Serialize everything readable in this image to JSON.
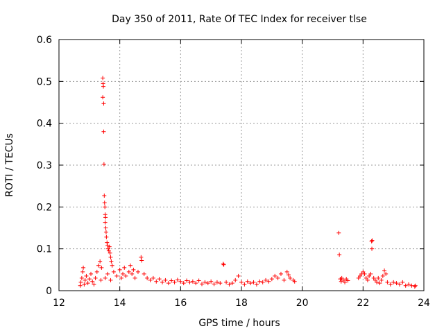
{
  "chart_data": {
    "type": "scatter",
    "title": "Day 350 of 2011, Rate Of TEC Index for receiver tlse",
    "xlabel": "GPS time / hours",
    "ylabel": "ROTI / TECUs",
    "xlim": [
      12,
      24
    ],
    "ylim": [
      0,
      0.6
    ],
    "x_ticks": [
      "12",
      "14",
      "16",
      "18",
      "20",
      "22",
      "24"
    ],
    "y_ticks": [
      "0",
      "0.1",
      "0.2",
      "0.3",
      "0.4",
      "0.5",
      "0.6"
    ],
    "grid": true,
    "marker": "plus",
    "series_color": "#ff0000",
    "series": [
      {
        "points": [
          [
            12.7,
            0.012
          ],
          [
            12.72,
            0.02
          ],
          [
            12.75,
            0.03
          ],
          [
            12.78,
            0.045
          ],
          [
            12.8,
            0.055
          ],
          [
            12.83,
            0.015
          ],
          [
            12.86,
            0.025
          ],
          [
            12.9,
            0.035
          ],
          [
            12.95,
            0.018
          ],
          [
            13.0,
            0.028
          ],
          [
            13.05,
            0.04
          ],
          [
            13.1,
            0.022
          ],
          [
            13.15,
            0.015
          ],
          [
            13.2,
            0.03
          ],
          [
            13.25,
            0.045
          ],
          [
            13.3,
            0.06
          ],
          [
            13.35,
            0.07
          ],
          [
            13.38,
            0.025
          ],
          [
            13.4,
            0.055
          ],
          [
            13.44,
            0.508
          ],
          [
            13.45,
            0.495
          ],
          [
            13.46,
            0.488
          ],
          [
            13.44,
            0.462
          ],
          [
            13.47,
            0.447
          ],
          [
            13.47,
            0.38
          ],
          [
            13.48,
            0.302
          ],
          [
            13.49,
            0.227
          ],
          [
            13.5,
            0.21
          ],
          [
            13.51,
            0.2
          ],
          [
            13.52,
            0.182
          ],
          [
            13.53,
            0.175
          ],
          [
            13.52,
            0.163
          ],
          [
            13.54,
            0.15
          ],
          [
            13.55,
            0.14
          ],
          [
            13.56,
            0.128
          ],
          [
            13.58,
            0.115
          ],
          [
            13.6,
            0.108
          ],
          [
            13.62,
            0.1
          ],
          [
            13.64,
            0.095
          ],
          [
            13.66,
            0.105
          ],
          [
            13.68,
            0.09
          ],
          [
            13.7,
            0.08
          ],
          [
            13.72,
            0.07
          ],
          [
            13.75,
            0.06
          ],
          [
            13.52,
            0.03
          ],
          [
            13.6,
            0.04
          ],
          [
            13.7,
            0.025
          ],
          [
            13.8,
            0.045
          ],
          [
            13.9,
            0.035
          ],
          [
            14.0,
            0.05
          ],
          [
            14.05,
            0.03
          ],
          [
            14.1,
            0.04
          ],
          [
            14.15,
            0.055
          ],
          [
            14.2,
            0.035
          ],
          [
            14.3,
            0.045
          ],
          [
            14.35,
            0.06
          ],
          [
            14.4,
            0.04
          ],
          [
            14.45,
            0.05
          ],
          [
            14.5,
            0.03
          ],
          [
            14.6,
            0.045
          ],
          [
            14.7,
            0.08
          ],
          [
            14.72,
            0.072
          ],
          [
            14.8,
            0.04
          ],
          [
            14.9,
            0.03
          ],
          [
            15.0,
            0.025
          ],
          [
            15.1,
            0.03
          ],
          [
            15.2,
            0.022
          ],
          [
            15.3,
            0.028
          ],
          [
            15.4,
            0.02
          ],
          [
            15.5,
            0.025
          ],
          [
            15.6,
            0.018
          ],
          [
            15.7,
            0.024
          ],
          [
            15.8,
            0.02
          ],
          [
            15.9,
            0.026
          ],
          [
            16.0,
            0.022
          ],
          [
            16.1,
            0.018
          ],
          [
            16.2,
            0.024
          ],
          [
            16.3,
            0.02
          ],
          [
            16.4,
            0.022
          ],
          [
            16.5,
            0.018
          ],
          [
            16.6,
            0.024
          ],
          [
            16.7,
            0.016
          ],
          [
            16.8,
            0.02
          ],
          [
            16.9,
            0.018
          ],
          [
            17.0,
            0.022
          ],
          [
            17.1,
            0.016
          ],
          [
            17.2,
            0.02
          ],
          [
            17.3,
            0.018
          ],
          [
            17.4,
            0.064
          ],
          [
            17.42,
            0.062
          ],
          [
            17.5,
            0.02
          ],
          [
            17.6,
            0.015
          ],
          [
            17.7,
            0.018
          ],
          [
            17.8,
            0.025
          ],
          [
            17.9,
            0.035
          ],
          [
            18.0,
            0.02
          ],
          [
            18.1,
            0.015
          ],
          [
            18.2,
            0.022
          ],
          [
            18.3,
            0.018
          ],
          [
            18.4,
            0.02
          ],
          [
            18.5,
            0.015
          ],
          [
            18.6,
            0.022
          ],
          [
            18.7,
            0.02
          ],
          [
            18.8,
            0.025
          ],
          [
            18.9,
            0.022
          ],
          [
            19.0,
            0.028
          ],
          [
            19.1,
            0.035
          ],
          [
            19.2,
            0.03
          ],
          [
            19.3,
            0.04
          ],
          [
            19.4,
            0.025
          ],
          [
            19.5,
            0.045
          ],
          [
            19.55,
            0.038
          ],
          [
            19.6,
            0.03
          ],
          [
            19.7,
            0.025
          ],
          [
            19.75,
            0.022
          ],
          [
            21.2,
            0.138
          ],
          [
            21.22,
            0.086
          ],
          [
            21.25,
            0.028
          ],
          [
            21.28,
            0.022
          ],
          [
            21.3,
            0.03
          ],
          [
            21.35,
            0.025
          ],
          [
            21.4,
            0.02
          ],
          [
            21.45,
            0.028
          ],
          [
            21.5,
            0.024
          ],
          [
            21.85,
            0.03
          ],
          [
            21.9,
            0.035
          ],
          [
            21.95,
            0.04
          ],
          [
            22.0,
            0.045
          ],
          [
            22.05,
            0.04
          ],
          [
            22.1,
            0.03
          ],
          [
            22.15,
            0.025
          ],
          [
            22.2,
            0.035
          ],
          [
            22.25,
            0.04
          ],
          [
            22.28,
            0.118
          ],
          [
            22.3,
            0.12
          ],
          [
            22.29,
            0.1
          ],
          [
            22.35,
            0.03
          ],
          [
            22.4,
            0.025
          ],
          [
            22.45,
            0.02
          ],
          [
            22.5,
            0.03
          ],
          [
            22.55,
            0.018
          ],
          [
            22.6,
            0.025
          ],
          [
            22.65,
            0.035
          ],
          [
            22.7,
            0.048
          ],
          [
            22.75,
            0.04
          ],
          [
            22.8,
            0.02
          ],
          [
            22.9,
            0.015
          ],
          [
            23.0,
            0.02
          ],
          [
            23.1,
            0.018
          ],
          [
            23.2,
            0.015
          ],
          [
            23.3,
            0.02
          ],
          [
            23.4,
            0.012
          ],
          [
            23.5,
            0.015
          ],
          [
            23.6,
            0.012
          ],
          [
            23.7,
            0.01
          ],
          [
            23.72,
            0.012
          ]
        ]
      }
    ]
  }
}
